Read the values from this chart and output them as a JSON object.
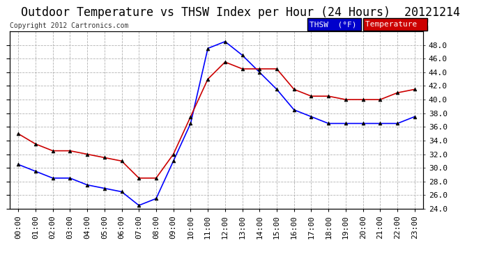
{
  "title": "Outdoor Temperature vs THSW Index per Hour (24 Hours)  20121214",
  "copyright": "Copyright 2012 Cartronics.com",
  "ylim": [
    24.0,
    50.0
  ],
  "yticks": [
    24.0,
    26.0,
    28.0,
    30.0,
    32.0,
    34.0,
    36.0,
    38.0,
    40.0,
    42.0,
    44.0,
    46.0,
    48.0
  ],
  "hours": [
    "00:00",
    "01:00",
    "02:00",
    "03:00",
    "04:00",
    "05:00",
    "06:00",
    "07:00",
    "08:00",
    "09:00",
    "10:00",
    "11:00",
    "12:00",
    "13:00",
    "14:00",
    "15:00",
    "16:00",
    "17:00",
    "18:00",
    "19:00",
    "20:00",
    "21:00",
    "22:00",
    "23:00"
  ],
  "thsw": [
    30.5,
    29.5,
    28.5,
    28.5,
    27.5,
    27.0,
    26.5,
    24.5,
    25.5,
    31.0,
    36.5,
    47.5,
    48.5,
    46.5,
    44.0,
    41.5,
    38.5,
    37.5,
    36.5,
    36.5,
    36.5,
    36.5,
    36.5,
    37.5
  ],
  "temp": [
    35.0,
    33.5,
    32.5,
    32.5,
    32.0,
    31.5,
    31.0,
    28.5,
    28.5,
    32.0,
    37.5,
    43.0,
    45.5,
    44.5,
    44.5,
    44.5,
    41.5,
    40.5,
    40.5,
    40.0,
    40.0,
    40.0,
    41.0,
    41.5
  ],
  "thsw_color": "#0000FF",
  "temp_color": "#CC0000",
  "marker": "^",
  "marker_color": "#000000",
  "grid_color": "#AAAAAA",
  "bg_color": "#FFFFFF",
  "legend_thsw_bg": "#0000CC",
  "legend_temp_bg": "#CC0000",
  "legend_text_color": "#FFFFFF",
  "title_fontsize": 12,
  "copyright_fontsize": 7,
  "tick_fontsize": 8,
  "legend_fontsize": 8
}
